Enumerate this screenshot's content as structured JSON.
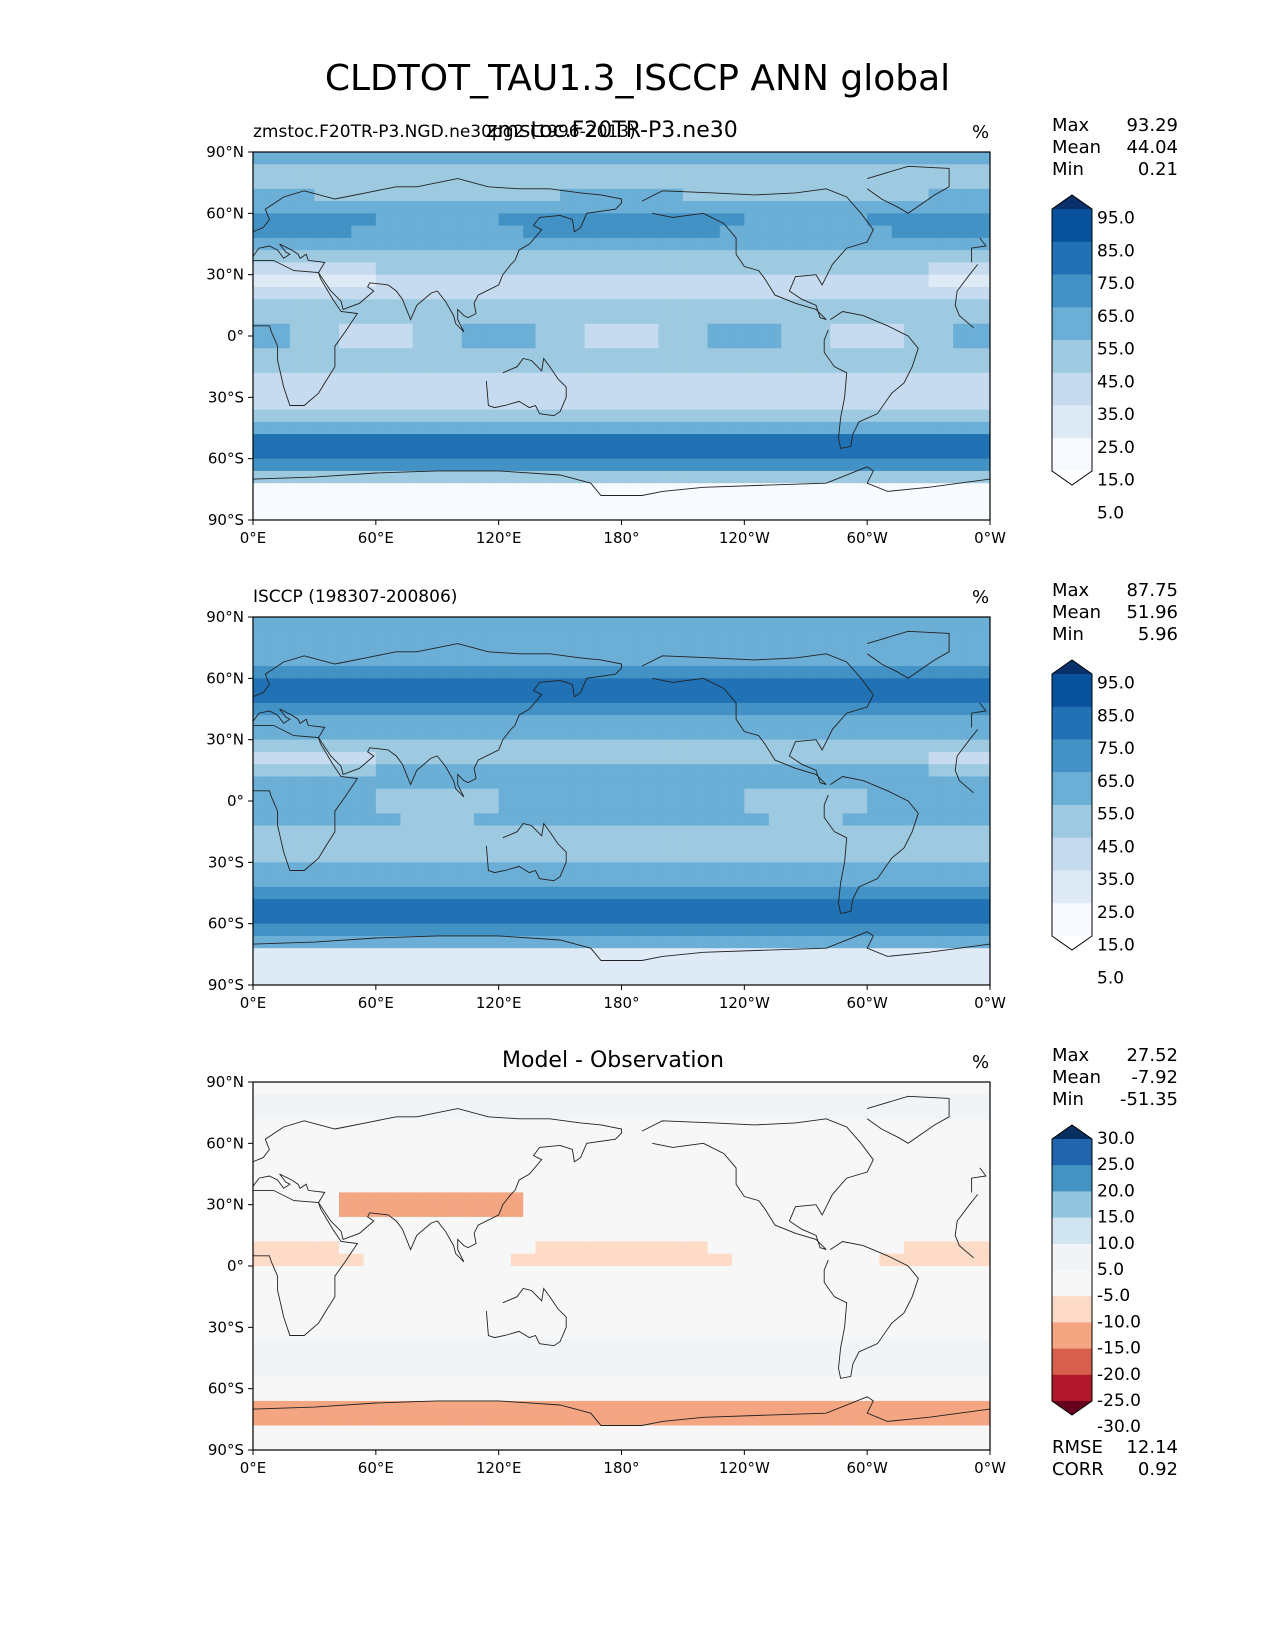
{
  "figure": {
    "title": "CLDTOT_TAU1.3_ISCCP ANN global",
    "overlap_text": "zmstoc.F20TR-P3.ne30"
  },
  "axes": {
    "lat_labels": [
      "90°N",
      "60°N",
      "30°N",
      "0°",
      "30°S",
      "60°S",
      "90°S"
    ],
    "lon_labels": [
      "0°E",
      "60°E",
      "120°E",
      "180°",
      "120°W",
      "60°W",
      "0°W"
    ]
  },
  "panels": [
    {
      "title_left": "zmstoc.F20TR-P3.NGD.ne30pg2 (1996-2013)",
      "title_center": "",
      "units": "%",
      "stats": [
        {
          "label": "Max",
          "value": "93.29"
        },
        {
          "label": "Mean",
          "value": "44.04"
        },
        {
          "label": "Min",
          "value": "0.21"
        }
      ],
      "colorbar_labels": [
        "95.0",
        "85.0",
        "75.0",
        "65.0",
        "55.0",
        "45.0",
        "35.0",
        "25.0",
        "15.0",
        "5.0"
      ],
      "colors": [
        "#08306b",
        "#08519c",
        "#2171b5",
        "#4292c6",
        "#6baed6",
        "#9ecae1",
        "#c6dbef",
        "#deebf7",
        "#f7fbff",
        "#ffffff"
      ],
      "extra_stats": []
    },
    {
      "title_left": "ISCCP (198307-200806)",
      "title_center": "",
      "units": "%",
      "stats": [
        {
          "label": "Max",
          "value": "87.75"
        },
        {
          "label": "Mean",
          "value": "51.96"
        },
        {
          "label": "Min",
          "value": "5.96"
        }
      ],
      "colorbar_labels": [
        "95.0",
        "85.0",
        "75.0",
        "65.0",
        "55.0",
        "45.0",
        "35.0",
        "25.0",
        "15.0",
        "5.0"
      ],
      "colors": [
        "#08306b",
        "#08519c",
        "#2171b5",
        "#4292c6",
        "#6baed6",
        "#9ecae1",
        "#c6dbef",
        "#deebf7",
        "#f7fbff",
        "#ffffff"
      ],
      "extra_stats": []
    },
    {
      "title_left": "",
      "title_center": "Model - Observation",
      "units": "%",
      "stats": [
        {
          "label": "Max",
          "value": "27.52"
        },
        {
          "label": "Mean",
          "value": "-7.92"
        },
        {
          "label": "Min",
          "value": "-51.35"
        }
      ],
      "colorbar_labels": [
        "30.0",
        "25.0",
        "20.0",
        "15.0",
        "10.0",
        "5.0",
        "-5.0",
        "-10.0",
        "-15.0",
        "-20.0",
        "-25.0",
        "-30.0"
      ],
      "colors": [
        "#053061",
        "#2166ac",
        "#4393c3",
        "#92c5de",
        "#d1e5f0",
        "#f0f4f7",
        "#f7f7f7",
        "#fddbc7",
        "#f4a582",
        "#d6604d",
        "#b2182b",
        "#67001f"
      ],
      "extra_stats": [
        {
          "label": "RMSE",
          "value": "12.14"
        },
        {
          "label": "CORR",
          "value": "0.92"
        }
      ]
    }
  ],
  "chart_data": [
    {
      "type": "heatmap",
      "title": "zmstoc.F20TR-P3.NGD.ne30pg2 (1996-2013)",
      "units": "%",
      "x_ticks": [
        "0°E",
        "60°E",
        "120°E",
        "180°",
        "120°W",
        "60°W",
        "0°W"
      ],
      "y_ticks": [
        "90°N",
        "60°N",
        "30°N",
        "0°",
        "30°S",
        "60°S",
        "90°S"
      ],
      "max": 93.29,
      "mean": 44.04,
      "min": 0.21,
      "levels": [
        5,
        15,
        25,
        35,
        45,
        55,
        65,
        75,
        85,
        95
      ]
    },
    {
      "type": "heatmap",
      "title": "ISCCP (198307-200806)",
      "units": "%",
      "x_ticks": [
        "0°E",
        "60°E",
        "120°E",
        "180°",
        "120°W",
        "60°W",
        "0°W"
      ],
      "y_ticks": [
        "90°N",
        "60°N",
        "30°N",
        "0°",
        "30°S",
        "60°S",
        "90°S"
      ],
      "max": 87.75,
      "mean": 51.96,
      "min": 5.96,
      "levels": [
        5,
        15,
        25,
        35,
        45,
        55,
        65,
        75,
        85,
        95
      ]
    },
    {
      "type": "heatmap",
      "title": "Model - Observation",
      "units": "%",
      "x_ticks": [
        "0°E",
        "60°E",
        "120°E",
        "180°",
        "120°W",
        "60°W",
        "0°W"
      ],
      "y_ticks": [
        "90°N",
        "60°N",
        "30°N",
        "0°",
        "30°S",
        "60°S",
        "90°S"
      ],
      "max": 27.52,
      "mean": -7.92,
      "min": -51.35,
      "rmse": 12.14,
      "corr": 0.92,
      "levels": [
        -30,
        -25,
        -20,
        -15,
        -10,
        -5,
        5,
        10,
        15,
        20,
        25,
        30
      ]
    }
  ]
}
